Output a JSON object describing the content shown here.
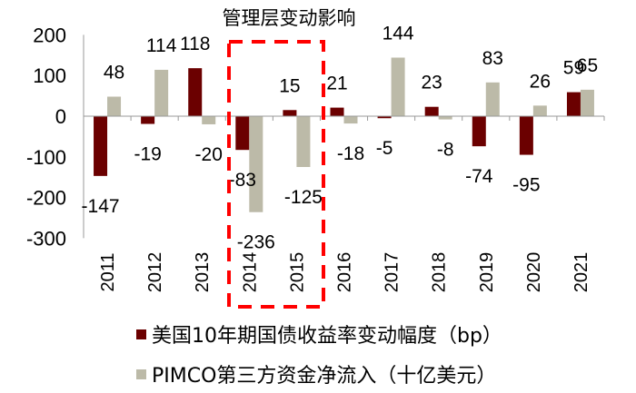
{
  "chart_data": {
    "type": "bar",
    "title": "管理层变动影响",
    "xlabel": "",
    "ylabel": "",
    "ylim": [
      -300,
      200
    ],
    "yticks": [
      200,
      100,
      0,
      -100,
      -200,
      -300
    ],
    "grid": false,
    "legend_position": "bottom",
    "categories": [
      "2011",
      "2012",
      "2013",
      "2014",
      "2015",
      "2016",
      "2017",
      "2018",
      "2019",
      "2020",
      "2021"
    ],
    "series": [
      {
        "name": "美国10年期国债收益率变动幅度（bp）",
        "color": "#6b0000",
        "values": [
          -147,
          -19,
          118,
          -83,
          15,
          21,
          -5,
          23,
          -74,
          -95,
          59
        ]
      },
      {
        "name": "PIMCO第三方资金净流入（十亿美元）",
        "color": "#bcbaa8",
        "values": [
          48,
          114,
          -20,
          -236,
          -125,
          -18,
          144,
          -8,
          83,
          26,
          65
        ]
      }
    ],
    "annotations": [
      {
        "type": "dashed-rectangle",
        "color": "#ff0000",
        "covers_categories": [
          "2014",
          "2015"
        ]
      }
    ]
  },
  "legend": {
    "items": [
      {
        "label": "美国10年期国债收益率变动幅度（bp）",
        "color": "#6b0000"
      },
      {
        "label": "PIMCO第三方资金净流入（十亿美元）",
        "color": "#bcbaa8"
      }
    ]
  }
}
